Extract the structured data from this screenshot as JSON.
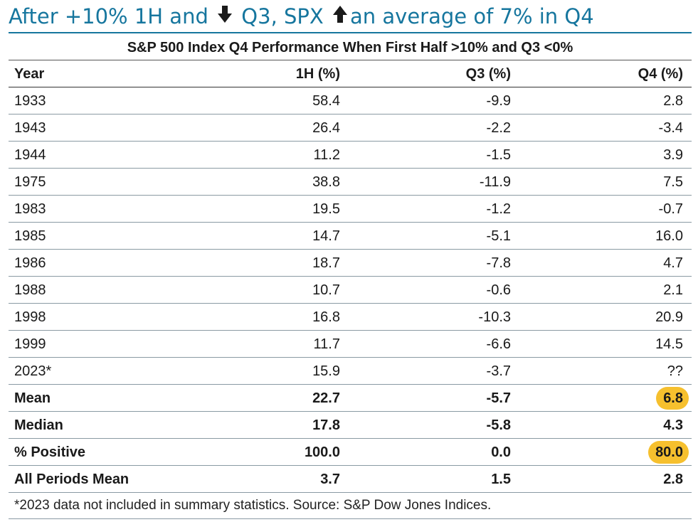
{
  "headline": {
    "part1": "After +10% 1H and ",
    "part2": " Q3, SPX ",
    "part3": "an average of 7% in Q4",
    "accent_color": "#16769e",
    "arrow_down_icon": "arrow-down-icon",
    "arrow_up_icon": "arrow-up-icon"
  },
  "table": {
    "title": "S&P 500 Index Q4 Performance When First Half >10% and Q3 <0%",
    "columns": [
      "Year",
      "1H (%)",
      "Q3 (%)",
      "Q4 (%)"
    ],
    "rows": [
      [
        "1933",
        "58.4",
        "-9.9",
        "2.8"
      ],
      [
        "1943",
        "26.4",
        "-2.2",
        "-3.4"
      ],
      [
        "1944",
        "11.2",
        "-1.5",
        "3.9"
      ],
      [
        "1975",
        "38.8",
        "-11.9",
        "7.5"
      ],
      [
        "1983",
        "19.5",
        "-1.2",
        "-0.7"
      ],
      [
        "1985",
        "14.7",
        "-5.1",
        "16.0"
      ],
      [
        "1986",
        "18.7",
        "-7.8",
        "4.7"
      ],
      [
        "1988",
        "10.7",
        "-0.6",
        "2.1"
      ],
      [
        "1998",
        "16.8",
        "-10.3",
        "20.9"
      ],
      [
        "1999",
        "11.7",
        "-6.6",
        "14.5"
      ],
      [
        "2023*",
        "15.9",
        "-3.7",
        "??"
      ]
    ],
    "summary": [
      [
        "Mean",
        "22.7",
        "-5.7",
        "6.8"
      ],
      [
        "Median",
        "17.8",
        "-5.8",
        "4.3"
      ],
      [
        "% Positive",
        "100.0",
        "0.0",
        "80.0"
      ],
      [
        "All Periods Mean",
        "3.7",
        "1.5",
        "2.8"
      ]
    ],
    "highlight_color": "#f6c02e"
  },
  "footnote": "*2023 data not included in summary statistics. Source: S&P Dow Jones Indices."
}
